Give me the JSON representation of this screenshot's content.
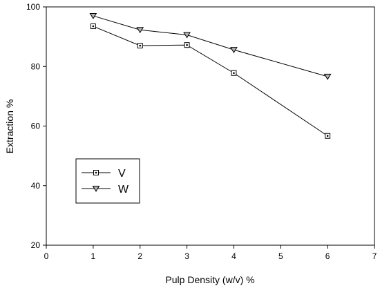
{
  "chart_data": {
    "type": "line",
    "title": "",
    "xlabel": "Pulp Density (w/v) %",
    "ylabel": "Extraction %",
    "xlim": [
      0,
      7
    ],
    "ylim": [
      20,
      100
    ],
    "xticks": [
      0,
      1,
      2,
      3,
      4,
      5,
      6,
      7
    ],
    "yticks": [
      20,
      40,
      60,
      80,
      100
    ],
    "grid": false,
    "legend_position": "lower-left",
    "series": [
      {
        "name": "V",
        "marker": "square-dot",
        "x": [
          1,
          2,
          3,
          4,
          6
        ],
        "values": [
          93.5,
          87.0,
          87.2,
          77.8,
          56.7
        ]
      },
      {
        "name": "W",
        "marker": "triangle-down",
        "x": [
          1,
          2,
          3,
          4,
          6
        ],
        "values": [
          97.0,
          92.3,
          90.6,
          85.6,
          76.6
        ]
      }
    ]
  },
  "colors": {
    "line": "#000000",
    "background": "#ffffff",
    "marker_fill": "#b0b0b0"
  }
}
